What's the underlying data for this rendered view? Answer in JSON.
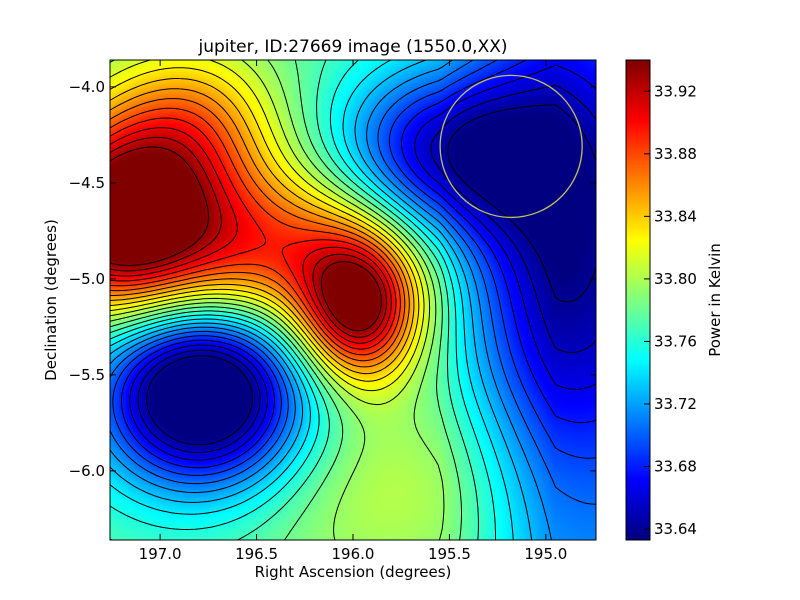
{
  "chart_data": {
    "type": "heatmap",
    "title": "jupiter, ID:27669 image (1550.0,XX)",
    "xlabel": "Right Ascension (degrees)",
    "ylabel": "Declination (degrees)",
    "xlim": [
      197.26,
      194.74
    ],
    "ylim": [
      -6.36,
      -3.86
    ],
    "x_ticks": [
      197.0,
      196.5,
      196.0,
      195.5,
      195.0
    ],
    "x_tick_labels": [
      "197.0",
      "196.5",
      "196.0",
      "195.5",
      "195.0"
    ],
    "y_ticks": [
      -4.0,
      -4.5,
      -5.0,
      -5.5,
      -6.0
    ],
    "y_tick_labels": [
      "−4.0",
      "−4.5",
      "−5.0",
      "−5.5",
      "−6.0"
    ],
    "colormap": "jet",
    "colorbar": {
      "label": "Power in Kelvin",
      "range": [
        33.633,
        33.94
      ],
      "ticks": [
        33.64,
        33.68,
        33.72,
        33.76,
        33.8,
        33.84,
        33.88,
        33.92
      ],
      "tick_labels": [
        "33.64",
        "33.68",
        "33.72",
        "33.76",
        "33.80",
        "33.84",
        "33.88",
        "33.92"
      ]
    },
    "contour_count": 24,
    "features": [
      {
        "kind": "maximum",
        "ra": 197.22,
        "dec": -4.68,
        "value": 33.935
      },
      {
        "kind": "maximum",
        "ra": 195.97,
        "dec": -5.16,
        "value": 33.925
      },
      {
        "kind": "minimum",
        "ra": 196.78,
        "dec": -5.55,
        "value": 33.64
      },
      {
        "kind": "minimum",
        "ra": 195.6,
        "dec": -4.34,
        "value": 33.64
      }
    ],
    "beam_marker": {
      "ra": 195.18,
      "dec": -4.31,
      "radius_deg": 0.37,
      "color": "#c0c060"
    },
    "contour_color": "#000000",
    "grid": false
  }
}
